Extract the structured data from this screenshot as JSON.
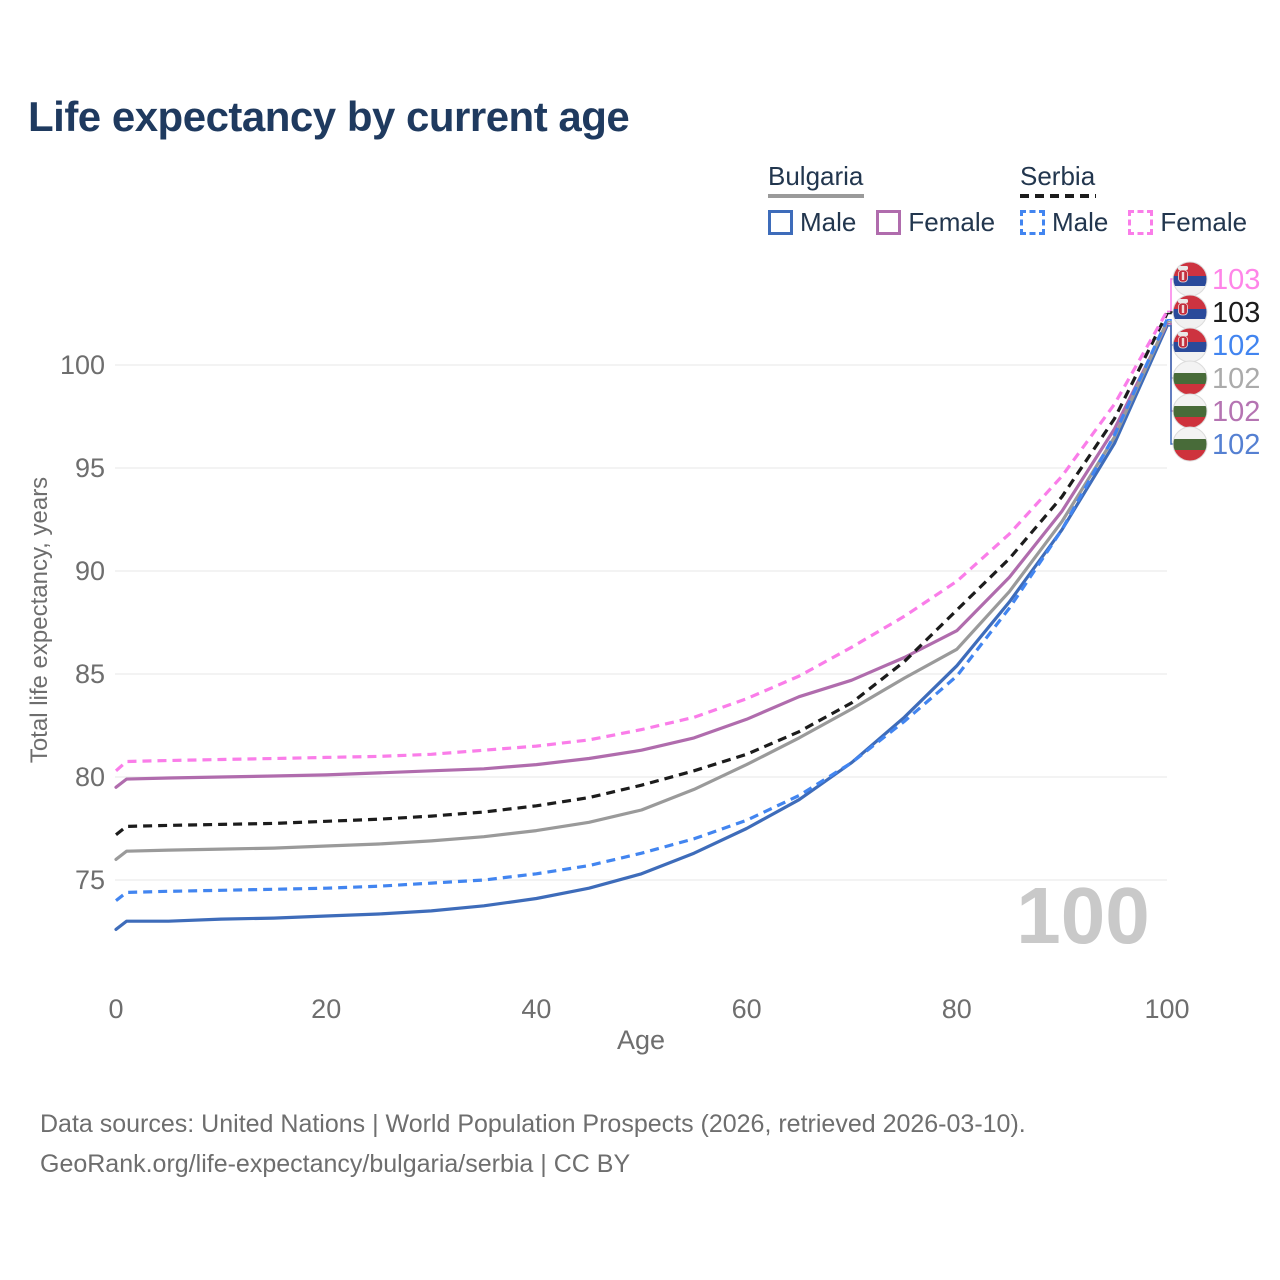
{
  "title": "Life expectancy by current age",
  "legend": {
    "groups": [
      {
        "country": "Bulgaria",
        "style": "solid",
        "items": [
          {
            "label": "Male"
          },
          {
            "label": "Female"
          }
        ]
      },
      {
        "country": "Serbia",
        "style": "dashed",
        "items": [
          {
            "label": "Male"
          },
          {
            "label": "Female"
          }
        ]
      }
    ]
  },
  "chart_data": {
    "type": "line",
    "title": "Life expectancy by current age",
    "xlabel": "Age",
    "ylabel": "Total life expectancy, years",
    "x_ticks": [
      0,
      20,
      40,
      60,
      80,
      100
    ],
    "y_ticks": [
      75,
      80,
      85,
      90,
      95,
      100
    ],
    "xlim": [
      0,
      100
    ],
    "ylim": [
      72,
      104
    ],
    "grid": "horizontal",
    "legend_position": "top-right",
    "watermark": "100",
    "x": [
      0,
      1,
      5,
      10,
      15,
      20,
      25,
      30,
      35,
      40,
      45,
      50,
      55,
      60,
      65,
      70,
      75,
      80,
      85,
      90,
      95,
      100
    ],
    "series": [
      {
        "id": "rs-female",
        "name": "Serbia Female",
        "country": "Serbia",
        "sex": "Female",
        "flag": "serbia",
        "dashed": true,
        "color": "#fa7de9",
        "label_color": "#ff85e8",
        "end_label": "103",
        "values": [
          80.3,
          80.75,
          80.8,
          80.85,
          80.9,
          80.95,
          81.0,
          81.1,
          81.3,
          81.5,
          81.8,
          82.3,
          82.9,
          83.8,
          84.9,
          86.3,
          87.8,
          89.5,
          91.8,
          94.6,
          98.1,
          102.6
        ]
      },
      {
        "id": "rs-total",
        "name": "Serbia",
        "country": "Serbia",
        "sex": "Both",
        "flag": "serbia",
        "dashed": true,
        "color": "#1c1c1c",
        "label_color": "#1c1c1c",
        "end_label": "103",
        "values": [
          77.2,
          77.6,
          77.65,
          77.7,
          77.75,
          77.85,
          77.95,
          78.1,
          78.3,
          78.6,
          79.0,
          79.6,
          80.3,
          81.1,
          82.2,
          83.6,
          85.6,
          88.1,
          90.6,
          93.6,
          97.4,
          102.5
        ]
      },
      {
        "id": "rs-male",
        "name": "Serbia Male",
        "country": "Serbia",
        "sex": "Male",
        "flag": "serbia",
        "dashed": true,
        "color": "#4285f0",
        "label_color": "#4285f0",
        "end_label": "102",
        "values": [
          74.0,
          74.4,
          74.45,
          74.5,
          74.55,
          74.6,
          74.7,
          74.85,
          75.0,
          75.3,
          75.7,
          76.3,
          77.0,
          77.9,
          79.1,
          80.7,
          82.7,
          84.9,
          88.2,
          92.0,
          96.6,
          102.2
        ]
      },
      {
        "id": "bg-total",
        "name": "Bulgaria",
        "country": "Bulgaria",
        "sex": "Both",
        "flag": "bulgaria",
        "dashed": false,
        "color": "#9a9a9a",
        "label_color": "#ababab",
        "end_label": "102",
        "values": [
          76.0,
          76.4,
          76.45,
          76.5,
          76.55,
          76.65,
          76.75,
          76.9,
          77.1,
          77.4,
          77.8,
          78.4,
          79.4,
          80.6,
          81.9,
          83.3,
          84.8,
          86.2,
          89.0,
          92.4,
          96.5,
          102.1
        ]
      },
      {
        "id": "bg-female",
        "name": "Bulgaria Female",
        "country": "Bulgaria",
        "sex": "Female",
        "flag": "bulgaria",
        "dashed": false,
        "color": "#b06cad",
        "label_color": "#b574b2",
        "end_label": "102",
        "values": [
          79.5,
          79.9,
          79.95,
          80.0,
          80.05,
          80.1,
          80.2,
          80.3,
          80.4,
          80.6,
          80.9,
          81.3,
          81.9,
          82.8,
          83.9,
          84.7,
          85.8,
          87.1,
          89.7,
          92.9,
          96.9,
          102.0
        ]
      },
      {
        "id": "bg-male",
        "name": "Bulgaria Male",
        "country": "Bulgaria",
        "sex": "Male",
        "flag": "bulgaria",
        "dashed": false,
        "color": "#3e6cba",
        "label_color": "#5580d2",
        "end_label": "102",
        "values": [
          72.6,
          73.0,
          73.0,
          73.1,
          73.15,
          73.25,
          73.35,
          73.5,
          73.75,
          74.1,
          74.6,
          75.3,
          76.3,
          77.5,
          78.9,
          80.7,
          82.9,
          85.4,
          88.5,
          92.0,
          96.2,
          101.9
        ]
      }
    ]
  },
  "footer": {
    "line1": "Data sources: United Nations | World Population Prospects (2026, retrieved 2026-03-10).",
    "line2": "GeoRank.org/life-expectancy/bulgaria/serbia | CC BY"
  }
}
